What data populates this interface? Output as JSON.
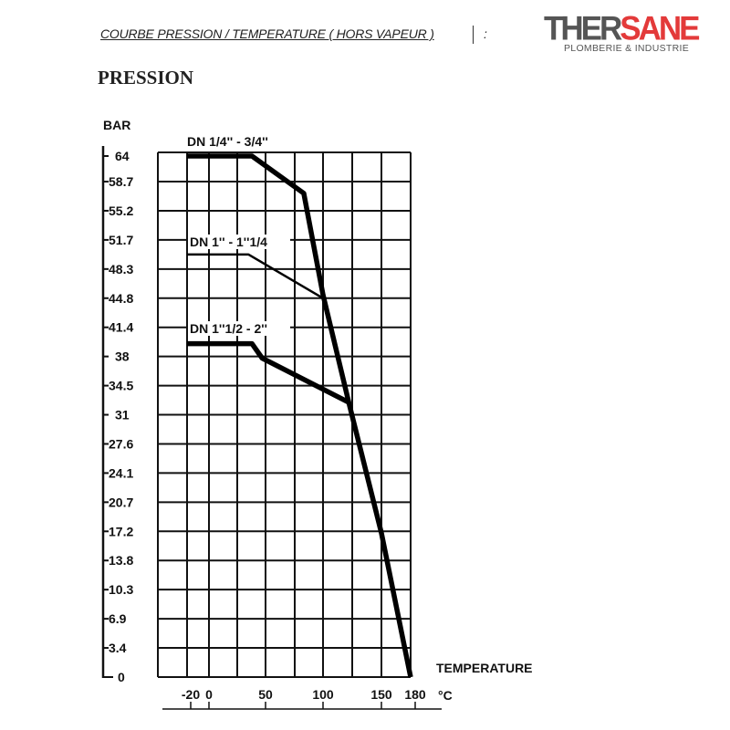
{
  "header": {
    "title": "COURBE PRESSION / TEMPERATURE ( HORS VAPEUR )",
    "title_suffix": ":",
    "logo": {
      "part1": "THER",
      "part2": "SANE",
      "tagline": "PLOMBERIE & INDUSTRIE",
      "colors": {
        "gray": "#555555",
        "red": "#e33a3a"
      }
    }
  },
  "section_title": "PRESSION",
  "chart_data": {
    "type": "line",
    "title": "",
    "ylabel": "BAR",
    "xlabel": "TEMPERATURE",
    "xunit": "°C",
    "y_ticks": [
      "0",
      "3.4",
      "6.9",
      "10.3",
      "13.8",
      "17.2",
      "20.7",
      "24.1",
      "27.6",
      "31",
      "34.5",
      "38",
      "41.4",
      "44.8",
      "48.3",
      "51.7",
      "55.2",
      "58.7",
      "64"
    ],
    "x_ticks": [
      "-20",
      "0",
      "50",
      "100",
      "150",
      "180"
    ],
    "ylim": [
      0,
      64
    ],
    "xlim": [
      -20,
      180
    ],
    "grid": true,
    "series": [
      {
        "name": "DN 1/4'' - 3/4''",
        "points": [
          [
            -20,
            64
          ],
          [
            38,
            64
          ],
          [
            83,
            57.3
          ],
          [
            100,
            45.2
          ],
          [
            122,
            32.5
          ],
          [
            150,
            17
          ],
          [
            180,
            0
          ]
        ]
      },
      {
        "name": "DN 1'' - 1''1/4",
        "points": [
          [
            -20,
            50
          ],
          [
            35,
            50
          ],
          [
            100,
            44.8
          ]
        ]
      },
      {
        "name": "DN 1''1/2 - 2''",
        "points": [
          [
            -20,
            39.5
          ],
          [
            38,
            39.5
          ],
          [
            47,
            37.8
          ],
          [
            122,
            32.5
          ]
        ]
      }
    ]
  }
}
